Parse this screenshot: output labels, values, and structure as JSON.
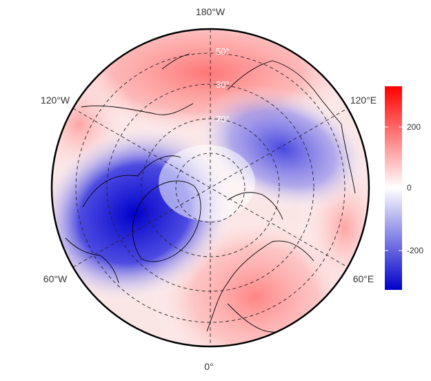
{
  "map": {
    "projection": "north-polar-stereographic",
    "longitude_labels": {
      "top": "180°W",
      "bottom": "0°",
      "upper_left": "120°W",
      "upper_right": "120°E",
      "lower_left": "60°W",
      "lower_right": "60°E"
    },
    "latitude_labels": [
      "30°",
      "50°",
      "70°"
    ],
    "colorbar": {
      "ticks": [
        "200",
        "0",
        "-200"
      ],
      "range": [
        -330,
        330
      ],
      "colors": {
        "high": "#ff0000",
        "mid": "#ffffff",
        "low": "#0000cc"
      }
    }
  }
}
